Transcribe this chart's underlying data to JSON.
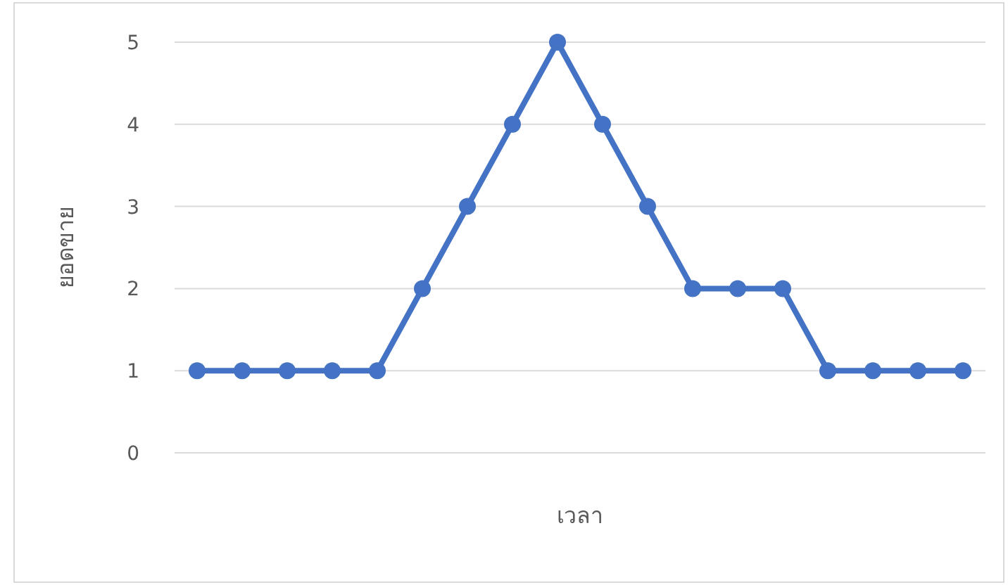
{
  "chart_data": {
    "type": "line",
    "xlabel": "เวลา",
    "ylabel": "ยอดขาย",
    "categories": [
      null,
      null,
      null,
      null,
      null,
      null,
      null,
      null,
      null,
      null,
      null,
      null,
      null,
      null,
      null,
      null,
      null,
      null
    ],
    "series": [
      {
        "color": "#4472c4",
        "values": [
          1,
          1,
          1,
          1,
          1,
          2,
          3,
          4,
          5,
          4,
          3,
          2,
          2,
          2,
          1,
          1,
          1,
          1
        ]
      }
    ],
    "ylim": [
      0,
      5
    ],
    "yticks": [
      0,
      1,
      2,
      3,
      4,
      5
    ],
    "grid": "y",
    "marker": "circle",
    "line_style": "solid"
  }
}
